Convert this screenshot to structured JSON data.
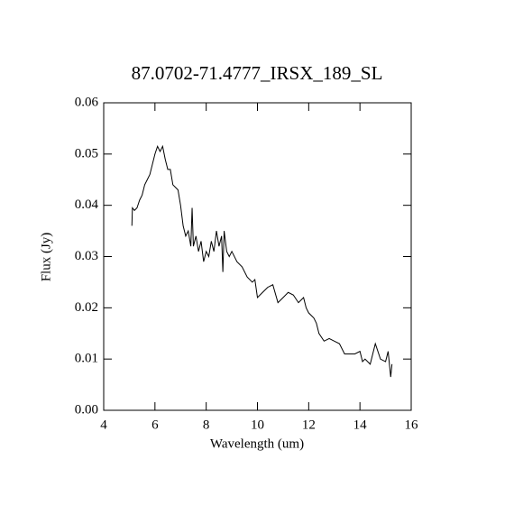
{
  "chart_data": {
    "type": "line",
    "title": "87.0702-71.4777_IRSX_189_SL",
    "x_label": "Wavelength (um)",
    "y_label": "Flux (Jy)",
    "xlim": [
      4,
      16
    ],
    "xticks": [
      4,
      6,
      8,
      10,
      12,
      14,
      16
    ],
    "ylim": [
      0,
      0.06
    ],
    "yticks": [
      {
        "value": 0,
        "label": "0.00"
      },
      0.01,
      0.02,
      0.03,
      0.04,
      0.05,
      {
        "value": 0.06,
        "label": "0.06"
      }
    ],
    "color": "#000000",
    "x": [
      5.1,
      5.12,
      5.2,
      5.3,
      5.4,
      5.5,
      5.6,
      5.7,
      5.8,
      5.9,
      6.0,
      6.1,
      6.2,
      6.3,
      6.4,
      6.5,
      6.6,
      6.7,
      6.8,
      6.9,
      7.0,
      7.1,
      7.2,
      7.3,
      7.4,
      7.45,
      7.5,
      7.6,
      7.7,
      7.8,
      7.9,
      8.0,
      8.1,
      8.2,
      8.3,
      8.4,
      8.5,
      8.6,
      8.65,
      8.7,
      8.8,
      8.9,
      9.0,
      9.2,
      9.4,
      9.6,
      9.8,
      9.9,
      10.0,
      10.2,
      10.4,
      10.6,
      10.8,
      11.0,
      11.2,
      11.4,
      11.6,
      11.8,
      11.9,
      12.0,
      12.2,
      12.3,
      12.4,
      12.6,
      12.8,
      13.0,
      13.2,
      13.4,
      13.6,
      13.8,
      14.0,
      14.1,
      14.2,
      14.4,
      14.6,
      14.8,
      15.0,
      15.1,
      15.2,
      15.25
    ],
    "values": [
      0.036,
      0.0395,
      0.039,
      0.0395,
      0.041,
      0.042,
      0.044,
      0.045,
      0.046,
      0.048,
      0.05,
      0.0515,
      0.0505,
      0.0515,
      0.049,
      0.047,
      0.047,
      0.044,
      0.0435,
      0.043,
      0.04,
      0.036,
      0.034,
      0.035,
      0.032,
      0.0395,
      0.032,
      0.034,
      0.031,
      0.033,
      0.029,
      0.031,
      0.03,
      0.033,
      0.031,
      0.035,
      0.032,
      0.034,
      0.027,
      0.035,
      0.031,
      0.03,
      0.031,
      0.029,
      0.028,
      0.026,
      0.025,
      0.0255,
      0.022,
      0.023,
      0.024,
      0.0245,
      0.021,
      0.022,
      0.023,
      0.0225,
      0.021,
      0.022,
      0.02,
      0.019,
      0.018,
      0.017,
      0.015,
      0.0135,
      0.014,
      0.0135,
      0.013,
      0.011,
      0.011,
      0.011,
      0.0115,
      0.0095,
      0.01,
      0.009,
      0.013,
      0.01,
      0.0095,
      0.0115,
      0.0065,
      0.009
    ]
  }
}
